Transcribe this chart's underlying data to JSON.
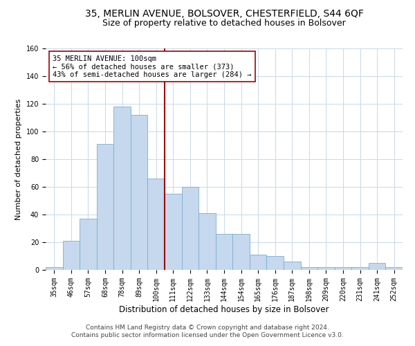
{
  "title1": "35, MERLIN AVENUE, BOLSOVER, CHESTERFIELD, S44 6QF",
  "title2": "Size of property relative to detached houses in Bolsover",
  "xlabel": "Distribution of detached houses by size in Bolsover",
  "ylabel": "Number of detached properties",
  "categories": [
    "35sqm",
    "46sqm",
    "57sqm",
    "68sqm",
    "78sqm",
    "89sqm",
    "100sqm",
    "111sqm",
    "122sqm",
    "133sqm",
    "144sqm",
    "154sqm",
    "165sqm",
    "176sqm",
    "187sqm",
    "198sqm",
    "209sqm",
    "220sqm",
    "231sqm",
    "241sqm",
    "252sqm"
  ],
  "values": [
    2,
    21,
    37,
    91,
    118,
    112,
    66,
    55,
    60,
    41,
    26,
    26,
    11,
    10,
    6,
    2,
    2,
    2,
    2,
    5,
    2
  ],
  "bar_color": "#c5d8ed",
  "bar_edge_color": "#7aadd4",
  "vline_x_index": 6,
  "vline_color": "#a00000",
  "annotation_text": "35 MERLIN AVENUE: 100sqm\n← 56% of detached houses are smaller (373)\n43% of semi-detached houses are larger (284) →",
  "annotation_box_color": "#ffffff",
  "annotation_box_edge_color": "#a00000",
  "ylim": [
    0,
    160
  ],
  "yticks": [
    0,
    20,
    40,
    60,
    80,
    100,
    120,
    140,
    160
  ],
  "footer1": "Contains HM Land Registry data © Crown copyright and database right 2024.",
  "footer2": "Contains public sector information licensed under the Open Government Licence v3.0.",
  "bg_color": "#ffffff",
  "grid_color": "#c8d8e8",
  "title1_fontsize": 10,
  "title2_fontsize": 9,
  "xlabel_fontsize": 8.5,
  "ylabel_fontsize": 8,
  "tick_fontsize": 7,
  "annotation_fontsize": 7.5,
  "footer_fontsize": 6.5
}
